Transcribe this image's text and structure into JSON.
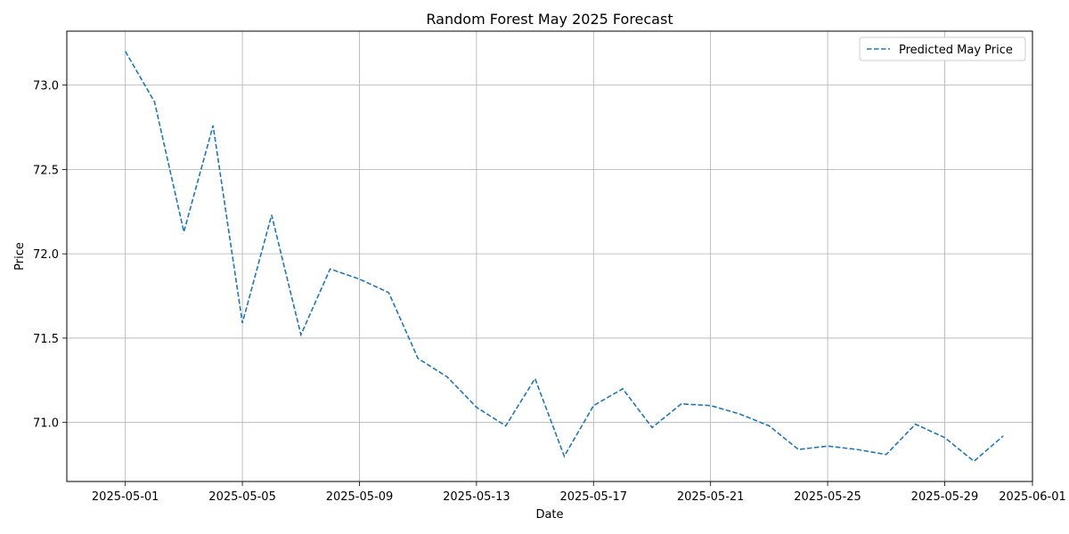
{
  "chart_data": {
    "type": "line",
    "title": "Random Forest May 2025 Forecast",
    "xlabel": "Date",
    "ylabel": "Price",
    "x": [
      "2025-05-01",
      "2025-05-02",
      "2025-05-03",
      "2025-05-04",
      "2025-05-05",
      "2025-05-06",
      "2025-05-07",
      "2025-05-08",
      "2025-05-09",
      "2025-05-10",
      "2025-05-11",
      "2025-05-12",
      "2025-05-13",
      "2025-05-14",
      "2025-05-15",
      "2025-05-16",
      "2025-05-17",
      "2025-05-18",
      "2025-05-19",
      "2025-05-20",
      "2025-05-21",
      "2025-05-22",
      "2025-05-23",
      "2025-05-24",
      "2025-05-25",
      "2025-05-26",
      "2025-05-27",
      "2025-05-28",
      "2025-05-29",
      "2025-05-30",
      "2025-05-31"
    ],
    "series": [
      {
        "name": "Predicted May Price",
        "color": "#1f77b4",
        "line_style": "dashed",
        "values": [
          73.2,
          72.9,
          72.13,
          72.76,
          71.59,
          72.23,
          71.52,
          71.91,
          71.85,
          71.77,
          71.38,
          71.27,
          71.09,
          70.98,
          71.26,
          70.8,
          71.1,
          71.2,
          70.97,
          71.11,
          71.1,
          71.05,
          70.98,
          70.84,
          70.86,
          70.84,
          70.81,
          70.99,
          70.91,
          70.77,
          70.92
        ]
      }
    ],
    "xticks": [
      "2025-05-01",
      "2025-05-05",
      "2025-05-09",
      "2025-05-13",
      "2025-05-17",
      "2025-05-21",
      "2025-05-25",
      "2025-05-29",
      "2025-06-01"
    ],
    "xlim": [
      "2025-04-29",
      "2025-06-01"
    ],
    "yticks": [
      "71.0",
      "71.5",
      "72.0",
      "72.5",
      "73.0"
    ],
    "ylim": [
      70.65,
      73.32
    ],
    "grid": true,
    "legend_position": "top-right"
  }
}
